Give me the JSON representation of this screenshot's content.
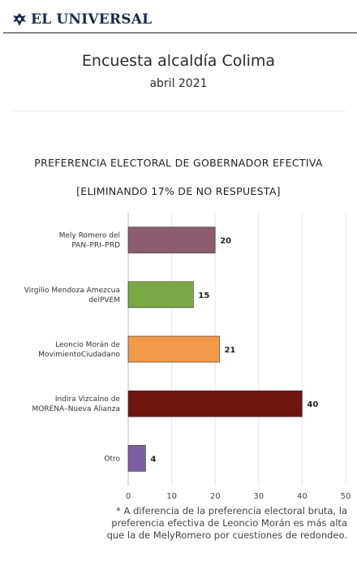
{
  "header": {
    "brand": "EL UNIVERSAL",
    "brand_icon": "eagle-logo-icon",
    "brand_color": "#1b2a4a"
  },
  "page": {
    "title": "Encuesta alcaldía Colima",
    "subtitle": "abril 2021"
  },
  "chart_data": {
    "type": "bar",
    "orientation": "horizontal",
    "title": "PREFERENCIA ELECTORAL DE GOBERNADOR EFECTIVA",
    "subtitle": "[ELIMINANDO 17% DE NO RESPUESTA]",
    "categories": [
      "Mely Romero del PAN–PRI–PRD",
      "Virgilio Mendoza Amezcua delPVEM",
      "Leoncio Morán de MovimientoCiudadano",
      "Indira Vizcaíno de MORENA–Nueva Alianza",
      "Otro"
    ],
    "values": [
      20,
      15,
      21,
      40,
      4
    ],
    "colors": [
      "#8b5d6e",
      "#7aa844",
      "#f29a49",
      "#6e1510",
      "#7d5ea3"
    ],
    "xlim": [
      0,
      50
    ],
    "xticks": [
      0,
      10,
      20,
      30,
      40,
      50
    ],
    "grid": true,
    "legend": "none"
  },
  "footnote": "* A diferencia de la preferencia electoral bruta, la preferencia efectiva de Leoncio Morán es más alta que la de MelyRomero por cuestiones de redondeo."
}
